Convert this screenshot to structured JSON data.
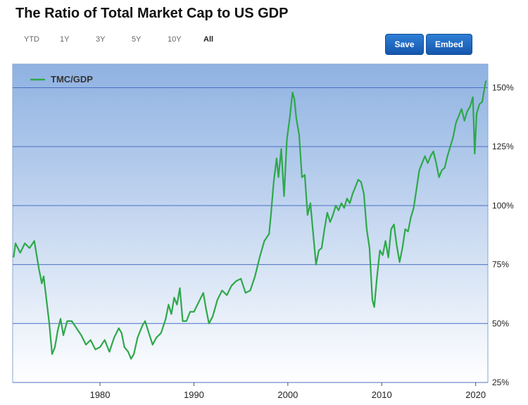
{
  "header": {
    "title": "The Ratio of Total Market Cap to US GDP"
  },
  "range_buttons": [
    {
      "label": "YTD",
      "active": false
    },
    {
      "label": "1Y",
      "active": false
    },
    {
      "label": "3Y",
      "active": false
    },
    {
      "label": "5Y",
      "active": false
    },
    {
      "label": "10Y",
      "active": false
    },
    {
      "label": "All",
      "active": true
    }
  ],
  "actions": {
    "save_label": "Save",
    "embed_label": "Embed"
  },
  "colors": {
    "series": "#2ea84a",
    "plot_top": "#8fb2e2",
    "plot_bottom": "#ffffff",
    "gridline": "#4a6fc4",
    "button": "#1d67c2"
  },
  "chart_data": {
    "type": "line",
    "title": "The Ratio of Total Market Cap to US GDP",
    "xlabel": "",
    "ylabel": "",
    "xlim": [
      1970.7,
      2021.3
    ],
    "ylim": [
      25,
      160
    ],
    "x_ticks": [
      1980,
      1990,
      2000,
      2010,
      2020
    ],
    "y_ticks": [
      25,
      50,
      75,
      100,
      125,
      150
    ],
    "y_tick_suffix": "%",
    "legend": "top-left",
    "grid": "horizontal",
    "series": [
      {
        "name": "TMC/GDP",
        "points": [
          [
            1970.8,
            78
          ],
          [
            1971.0,
            84
          ],
          [
            1971.5,
            80
          ],
          [
            1972.0,
            84
          ],
          [
            1972.5,
            82
          ],
          [
            1973.0,
            85
          ],
          [
            1973.5,
            73
          ],
          [
            1973.8,
            67
          ],
          [
            1974.0,
            70
          ],
          [
            1974.3,
            60
          ],
          [
            1974.6,
            50
          ],
          [
            1974.9,
            37
          ],
          [
            1975.2,
            40
          ],
          [
            1975.5,
            47
          ],
          [
            1975.8,
            52
          ],
          [
            1976.1,
            45
          ],
          [
            1976.5,
            51
          ],
          [
            1977.0,
            51
          ],
          [
            1977.5,
            48
          ],
          [
            1978.0,
            45
          ],
          [
            1978.5,
            41
          ],
          [
            1979.0,
            43
          ],
          [
            1979.5,
            39
          ],
          [
            1980.0,
            40
          ],
          [
            1980.5,
            43
          ],
          [
            1981.0,
            38
          ],
          [
            1981.5,
            44
          ],
          [
            1982.0,
            48
          ],
          [
            1982.3,
            46
          ],
          [
            1982.6,
            40
          ],
          [
            1983.0,
            38
          ],
          [
            1983.3,
            35
          ],
          [
            1983.6,
            37
          ],
          [
            1984.0,
            44
          ],
          [
            1984.5,
            49
          ],
          [
            1984.8,
            51
          ],
          [
            1985.2,
            46
          ],
          [
            1985.6,
            41
          ],
          [
            1986.0,
            44
          ],
          [
            1986.5,
            46
          ],
          [
            1987.0,
            52
          ],
          [
            1987.3,
            58
          ],
          [
            1987.6,
            54
          ],
          [
            1987.9,
            61
          ],
          [
            1988.2,
            58
          ],
          [
            1988.5,
            65
          ],
          [
            1988.8,
            51
          ],
          [
            1989.2,
            51
          ],
          [
            1989.6,
            55
          ],
          [
            1990.0,
            55
          ],
          [
            1990.5,
            59
          ],
          [
            1991.0,
            63
          ],
          [
            1991.3,
            56
          ],
          [
            1991.6,
            50
          ],
          [
            1992.0,
            53
          ],
          [
            1992.5,
            60
          ],
          [
            1993.0,
            64
          ],
          [
            1993.5,
            62
          ],
          [
            1994.0,
            66
          ],
          [
            1994.5,
            68
          ],
          [
            1995.0,
            69
          ],
          [
            1995.5,
            63
          ],
          [
            1996.0,
            64
          ],
          [
            1996.5,
            70
          ],
          [
            1997.0,
            78
          ],
          [
            1997.5,
            85
          ],
          [
            1998.0,
            88
          ],
          [
            1998.2,
            96
          ],
          [
            1998.5,
            110
          ],
          [
            1998.8,
            120
          ],
          [
            1999.0,
            112
          ],
          [
            1999.3,
            124
          ],
          [
            1999.6,
            104
          ],
          [
            1999.9,
            128
          ],
          [
            2000.2,
            137
          ],
          [
            2000.5,
            148
          ],
          [
            2000.7,
            145
          ],
          [
            2000.9,
            137
          ],
          [
            2001.2,
            130
          ],
          [
            2001.5,
            112
          ],
          [
            2001.8,
            113
          ],
          [
            2002.1,
            96
          ],
          [
            2002.4,
            101
          ],
          [
            2002.7,
            88
          ],
          [
            2003.0,
            75
          ],
          [
            2003.3,
            81
          ],
          [
            2003.6,
            82
          ],
          [
            2003.9,
            90
          ],
          [
            2004.2,
            97
          ],
          [
            2004.5,
            93
          ],
          [
            2004.8,
            96
          ],
          [
            2005.1,
            100
          ],
          [
            2005.4,
            98
          ],
          [
            2005.7,
            101
          ],
          [
            2006.0,
            99
          ],
          [
            2006.3,
            103
          ],
          [
            2006.6,
            101
          ],
          [
            2006.9,
            105
          ],
          [
            2007.2,
            108
          ],
          [
            2007.5,
            111
          ],
          [
            2007.8,
            110
          ],
          [
            2008.1,
            105
          ],
          [
            2008.4,
            90
          ],
          [
            2008.7,
            82
          ],
          [
            2009.0,
            60
          ],
          [
            2009.2,
            57
          ],
          [
            2009.5,
            70
          ],
          [
            2009.8,
            81
          ],
          [
            2010.1,
            79
          ],
          [
            2010.4,
            85
          ],
          [
            2010.7,
            78
          ],
          [
            2011.0,
            90
          ],
          [
            2011.3,
            92
          ],
          [
            2011.6,
            83
          ],
          [
            2011.9,
            76
          ],
          [
            2012.2,
            82
          ],
          [
            2012.5,
            90
          ],
          [
            2012.8,
            89
          ],
          [
            2013.1,
            95
          ],
          [
            2013.4,
            99
          ],
          [
            2013.7,
            107
          ],
          [
            2014.0,
            115
          ],
          [
            2014.3,
            118
          ],
          [
            2014.6,
            121
          ],
          [
            2014.9,
            118
          ],
          [
            2015.2,
            121
          ],
          [
            2015.5,
            123
          ],
          [
            2015.8,
            118
          ],
          [
            2016.1,
            112
          ],
          [
            2016.4,
            115
          ],
          [
            2016.7,
            116
          ],
          [
            2017.0,
            121
          ],
          [
            2017.3,
            125
          ],
          [
            2017.6,
            129
          ],
          [
            2017.9,
            135
          ],
          [
            2018.2,
            138
          ],
          [
            2018.5,
            141
          ],
          [
            2018.8,
            136
          ],
          [
            2019.1,
            140
          ],
          [
            2019.4,
            142
          ],
          [
            2019.7,
            146
          ],
          [
            2019.9,
            122
          ],
          [
            2020.1,
            139
          ],
          [
            2020.4,
            143
          ],
          [
            2020.7,
            144
          ],
          [
            2020.9,
            149
          ],
          [
            2021.1,
            153
          ]
        ]
      }
    ]
  }
}
